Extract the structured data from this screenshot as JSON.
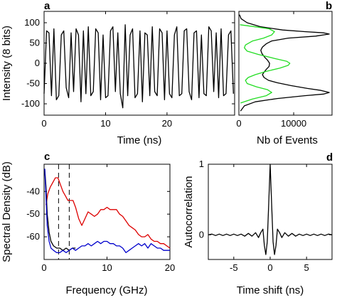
{
  "chart_data": [
    {
      "panel": "a",
      "type": "line",
      "xlabel": "Time (ns)",
      "ylabel": "Intensity (8 bits)",
      "xlim": [
        0,
        31
      ],
      "ylim": [
        -128,
        128
      ],
      "xticks": [
        0,
        10,
        20
      ],
      "yticks": [
        -100,
        -50,
        0,
        50,
        100
      ],
      "series": [
        {
          "color": "#000000",
          "x": [
            0.0,
            0.4,
            0.8,
            1.2,
            1.6,
            2.0,
            2.4,
            2.8,
            3.2,
            3.6,
            4.0,
            4.4,
            4.8,
            5.2,
            5.6,
            6.0,
            6.4,
            6.8,
            7.2,
            7.6,
            8.0,
            8.4,
            8.8,
            9.2,
            9.6,
            10.0,
            10.4,
            10.8,
            11.2,
            11.6,
            12.0,
            12.4,
            12.8,
            13.2,
            13.6,
            14.0,
            14.4,
            14.8,
            15.2,
            15.6,
            16.0,
            16.4,
            16.8,
            17.2,
            17.6,
            18.0,
            18.4,
            18.8,
            19.2,
            19.6,
            20.0,
            20.4,
            20.8,
            21.2,
            21.6,
            22.0,
            22.4,
            22.8,
            23.2,
            23.6,
            24.0,
            24.4,
            24.8,
            25.2,
            25.6,
            26.0,
            26.4,
            26.8,
            27.2,
            27.6,
            28.0,
            28.4,
            28.8,
            29.2,
            29.6,
            30.0,
            30.4,
            30.8
          ],
          "values": [
            -75,
            80,
            75,
            -80,
            85,
            -90,
            -80,
            70,
            80,
            -60,
            -85,
            75,
            -70,
            85,
            70,
            -95,
            80,
            -75,
            90,
            -80,
            -70,
            85,
            75,
            -90,
            70,
            -85,
            -80,
            80,
            90,
            -70,
            75,
            -75,
            -110,
            95,
            -80,
            70,
            85,
            -85,
            -75,
            80,
            -95,
            75,
            70,
            -80,
            90,
            -70,
            -80,
            85,
            75,
            -90,
            80,
            -75,
            -85,
            70,
            90,
            -80,
            -75,
            80,
            85,
            -70,
            -90,
            75,
            80,
            -85,
            70,
            -75,
            -80,
            90,
            80,
            -70,
            75,
            -85,
            85,
            -80,
            -75,
            70,
            80,
            -75
          ]
        }
      ]
    },
    {
      "panel": "b",
      "type": "line",
      "xlabel": "Nb of Events",
      "xlim": [
        0,
        17000
      ],
      "ylim": [
        -128,
        128
      ],
      "xticks": [
        0,
        10000
      ],
      "series": [
        {
          "color": "#000000",
          "x": [
            100,
            400,
            1500,
            4000,
            8000,
            12000,
            15500,
            16500,
            14000,
            9000,
            6000,
            5000,
            4300,
            4000,
            4200,
            4700,
            5200,
            5600,
            5500,
            5000,
            4600,
            4300,
            4600,
            5400,
            7000,
            9500,
            12500,
            15000,
            16500,
            15500,
            12000,
            7000,
            3000,
            1000,
            300
          ],
          "y": [
            120,
            110,
            100,
            90,
            82,
            78,
            75,
            72,
            67,
            62,
            55,
            48,
            40,
            32,
            24,
            15,
            8,
            0,
            -8,
            -15,
            -22,
            -28,
            -35,
            -42,
            -48,
            -55,
            -62,
            -67,
            -72,
            -76,
            -80,
            -87,
            -95,
            -105,
            -118
          ]
        },
        {
          "color": "#22dd22",
          "x": [
            200,
            3000,
            5500,
            6500,
            6000,
            4500,
            2500,
            1200,
            1000,
            1500,
            3500,
            6500,
            8700,
            9300,
            9000,
            7500,
            5000,
            3000,
            1700,
            1200,
            1500,
            3200,
            5200,
            6000,
            5000,
            2500,
            300
          ],
          "y": [
            95,
            90,
            85,
            78,
            70,
            62,
            55,
            45,
            38,
            30,
            22,
            12,
            5,
            0,
            -5,
            -12,
            -20,
            -28,
            -35,
            -42,
            -50,
            -58,
            -65,
            -72,
            -80,
            -88,
            -98
          ]
        }
      ]
    },
    {
      "panel": "c",
      "type": "line",
      "xlabel": "Frequency (GHz)",
      "ylabel": "Spectral Density (dB)",
      "xlim": [
        0,
        20
      ],
      "ylim": [
        -70,
        -28
      ],
      "xticks": [
        0,
        10,
        20
      ],
      "yticks": [
        -40,
        -50,
        -60
      ],
      "vlines": [
        2.3,
        4.0
      ],
      "series": [
        {
          "color": "#dd0000",
          "x": [
            0.3,
            0.6,
            1.0,
            1.4,
            1.8,
            2.2,
            2.6,
            3.0,
            3.4,
            3.8,
            4.2,
            4.6,
            5.0,
            5.5,
            6.0,
            6.5,
            7.0,
            7.5,
            8.0,
            8.5,
            9.0,
            9.5,
            10.0,
            10.5,
            11.0,
            11.5,
            12.0,
            12.5,
            13.0,
            13.5,
            14.0,
            14.5,
            15.0,
            15.5,
            16.0,
            16.5,
            17.0,
            17.5,
            18.0,
            18.5,
            19.0,
            19.5,
            20.0
          ],
          "values": [
            -46,
            -41,
            -38,
            -36,
            -34,
            -34,
            -37,
            -40,
            -42,
            -44,
            -44,
            -44,
            -47,
            -52,
            -55,
            -52,
            -49,
            -50,
            -51,
            -50,
            -48,
            -48,
            -47,
            -48,
            -48,
            -48,
            -50,
            -51,
            -53,
            -55,
            -56,
            -57,
            -59,
            -60,
            -60,
            -59,
            -61,
            -62,
            -62,
            -63,
            -63,
            -64,
            -65
          ]
        },
        {
          "color": "#000000",
          "x": [
            0.1,
            0.3,
            0.5,
            0.8,
            1.1,
            1.5,
            2.0,
            2.5,
            3.0,
            3.5,
            4.0,
            4.5,
            5.0
          ],
          "values": [
            -30,
            -38,
            -50,
            -58,
            -62,
            -64,
            -65,
            -65,
            -66,
            -65,
            -66,
            -65,
            -65
          ]
        },
        {
          "color": "#0000cc",
          "x": [
            0.1,
            0.3,
            0.5,
            0.8,
            1.1,
            1.5,
            2.0,
            2.5,
            3.0,
            3.5,
            4.0,
            4.5,
            5.0,
            5.5,
            6.0,
            6.5,
            7.0,
            7.5,
            8.0,
            8.5,
            9.0,
            9.5,
            10.0,
            10.5,
            11.0,
            11.5,
            12.0,
            12.5,
            13.0,
            13.5,
            14.0,
            14.5,
            15.0,
            15.5,
            16.0,
            16.5,
            17.0,
            17.5,
            18.0,
            18.5,
            19.0,
            19.5,
            20.0
          ],
          "values": [
            -30,
            -42,
            -55,
            -62,
            -65,
            -66,
            -67,
            -67,
            -66,
            -67,
            -66,
            -65,
            -66,
            -65,
            -64,
            -64,
            -63,
            -64,
            -63,
            -62,
            -63,
            -62,
            -62,
            -63,
            -63,
            -64,
            -64,
            -65,
            -67,
            -66,
            -65,
            -64,
            -63,
            -64,
            -63,
            -65,
            -63,
            -64,
            -65,
            -65,
            -66,
            -66,
            -66
          ]
        }
      ]
    },
    {
      "panel": "d",
      "type": "line",
      "xlabel": "Time shift (ns)",
      "ylabel": "Autocorrelation",
      "xlim": [
        -8.5,
        8.5
      ],
      "ylim": [
        -0.35,
        1.0
      ],
      "xticks": [
        -5,
        0,
        5
      ],
      "yticks": [
        0,
        1
      ],
      "series": [
        {
          "color": "#000000",
          "x": [
            -8.5,
            -8.0,
            -7.5,
            -7.0,
            -6.5,
            -6.0,
            -5.5,
            -5.0,
            -4.5,
            -4.0,
            -3.5,
            -3.0,
            -2.5,
            -2.0,
            -1.6,
            -1.3,
            -1.0,
            -0.8,
            -0.6,
            -0.4,
            -0.2,
            0.0,
            0.2,
            0.4,
            0.6,
            0.8,
            1.0,
            1.3,
            1.6,
            2.0,
            2.5,
            3.0,
            3.5,
            4.0,
            4.5,
            5.0,
            5.5,
            6.0,
            6.5,
            7.0,
            7.5,
            8.0,
            8.5
          ],
          "values": [
            0.0,
            0.01,
            -0.01,
            0.01,
            -0.01,
            0.01,
            -0.01,
            0.01,
            -0.01,
            0.01,
            -0.02,
            0.02,
            -0.02,
            0.03,
            -0.04,
            0.03,
            0.08,
            -0.15,
            -0.28,
            -0.1,
            0.45,
            1.0,
            0.45,
            -0.1,
            -0.28,
            -0.15,
            0.08,
            0.03,
            -0.04,
            0.03,
            -0.02,
            0.02,
            -0.02,
            0.01,
            -0.01,
            0.01,
            -0.01,
            0.01,
            -0.01,
            0.01,
            -0.01,
            0.01,
            0.0
          ]
        }
      ]
    }
  ],
  "labels": {
    "a": "a",
    "b": "b",
    "c": "c",
    "d": "d"
  }
}
